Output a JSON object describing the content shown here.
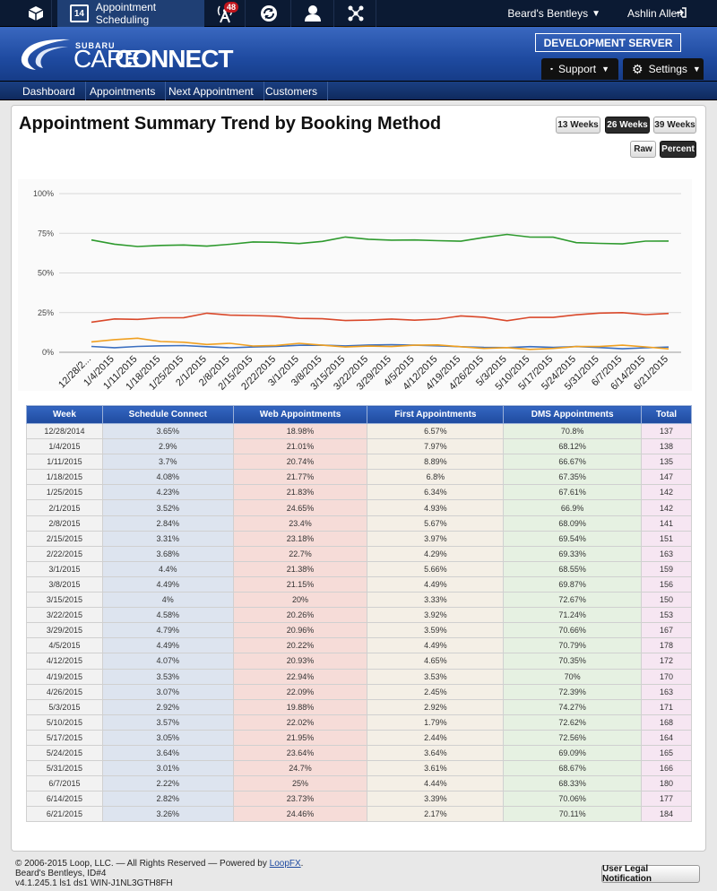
{
  "topbar": {
    "app_name": "Appointment Scheduling",
    "calendar_day": "14",
    "notification_count": "48",
    "dealer_name": "Beard's Bentleys",
    "user_name": "Ashlin Allen"
  },
  "header": {
    "logo_brand": "SUBARU",
    "logo_care": "CARE",
    "logo_connect": "CONNECT",
    "server_label": "DEVELOPMENT SERVER",
    "support_label": "Support",
    "settings_label": "Settings"
  },
  "nav": {
    "items": [
      "Dashboard",
      "Appointments",
      "Next Appointment",
      "Customers"
    ]
  },
  "page": {
    "title": "Appointment Summary Trend by Booking Method",
    "range_buttons": [
      "13 Weeks",
      "26 Weeks",
      "39 Weeks"
    ],
    "active_range": "26 Weeks",
    "mode_buttons": [
      "Raw",
      "Percent"
    ],
    "active_mode": "Percent"
  },
  "colors": {
    "schedule_connect": "#3b6fc0",
    "web": "#d9482a",
    "first": "#f0a020",
    "dms": "#2e9a2e"
  },
  "chart_data": {
    "type": "line",
    "x": [
      "12/28/2014",
      "1/4/2015",
      "1/11/2015",
      "1/18/2015",
      "1/25/2015",
      "2/1/2015",
      "2/8/2015",
      "2/15/2015",
      "2/22/2015",
      "3/1/2015",
      "3/8/2015",
      "3/15/2015",
      "3/22/2015",
      "3/29/2015",
      "4/5/2015",
      "4/12/2015",
      "4/19/2015",
      "4/26/2015",
      "5/3/2015",
      "5/10/2015",
      "5/17/2015",
      "5/24/2015",
      "5/31/2015",
      "6/7/2015",
      "6/14/2015",
      "6/21/2015"
    ],
    "x_tick_labels": [
      "12/28/2...",
      "1/4/2015",
      "1/11/2015",
      "1/18/2015",
      "1/25/2015",
      "2/1/2015",
      "2/8/2015",
      "2/15/2015",
      "2/22/2015",
      "3/1/2015",
      "3/8/2015",
      "3/15/2015",
      "3/22/2015",
      "3/29/2015",
      "4/5/2015",
      "4/12/2015",
      "4/19/2015",
      "4/26/2015",
      "5/3/2015",
      "5/10/2015",
      "5/17/2015",
      "5/24/2015",
      "5/31/2015",
      "6/7/2015",
      "6/14/2015",
      "6/21/2015"
    ],
    "y_ticks": [
      "0%",
      "25%",
      "50%",
      "75%",
      "100%"
    ],
    "ylim": [
      0,
      100
    ],
    "grid": true,
    "series": [
      {
        "values": [
          3.65,
          2.9,
          3.7,
          4.08,
          4.23,
          3.52,
          2.84,
          3.31,
          3.68,
          4.4,
          4.49,
          4,
          4.58,
          4.79,
          4.49,
          4.07,
          3.53,
          3.07,
          2.92,
          3.57,
          3.05,
          3.64,
          3.01,
          2.22,
          2.82,
          3.26
        ]
      },
      {
        "values": [
          18.98,
          21.01,
          20.74,
          21.77,
          21.83,
          24.65,
          23.4,
          23.18,
          22.7,
          21.38,
          21.15,
          20,
          20.26,
          20.96,
          20.22,
          20.93,
          22.94,
          22.09,
          19.88,
          22.02,
          21.95,
          23.64,
          24.7,
          25,
          23.73,
          24.46
        ]
      },
      {
        "values": [
          6.57,
          7.97,
          8.89,
          6.8,
          6.34,
          4.93,
          5.67,
          3.97,
          4.29,
          5.66,
          4.49,
          3.33,
          3.92,
          3.59,
          4.49,
          4.65,
          3.53,
          2.45,
          2.92,
          1.79,
          2.44,
          3.64,
          3.61,
          4.44,
          3.39,
          2.17
        ]
      },
      {
        "values": [
          70.8,
          68.12,
          66.67,
          67.35,
          67.61,
          66.9,
          68.09,
          69.54,
          69.33,
          68.55,
          69.87,
          72.67,
          71.24,
          70.66,
          70.79,
          70.35,
          70,
          72.39,
          74.27,
          72.62,
          72.56,
          69.09,
          68.67,
          68.33,
          70.06,
          70.11
        ]
      }
    ]
  },
  "table": {
    "headers": [
      "Week",
      "Schedule Connect",
      "Web Appointments",
      "First Appointments",
      "DMS Appointments",
      "Total"
    ],
    "rows": [
      [
        "12/28/2014",
        "3.65%",
        "18.98%",
        "6.57%",
        "70.8%",
        "137"
      ],
      [
        "1/4/2015",
        "2.9%",
        "21.01%",
        "7.97%",
        "68.12%",
        "138"
      ],
      [
        "1/11/2015",
        "3.7%",
        "20.74%",
        "8.89%",
        "66.67%",
        "135"
      ],
      [
        "1/18/2015",
        "4.08%",
        "21.77%",
        "6.8%",
        "67.35%",
        "147"
      ],
      [
        "1/25/2015",
        "4.23%",
        "21.83%",
        "6.34%",
        "67.61%",
        "142"
      ],
      [
        "2/1/2015",
        "3.52%",
        "24.65%",
        "4.93%",
        "66.9%",
        "142"
      ],
      [
        "2/8/2015",
        "2.84%",
        "23.4%",
        "5.67%",
        "68.09%",
        "141"
      ],
      [
        "2/15/2015",
        "3.31%",
        "23.18%",
        "3.97%",
        "69.54%",
        "151"
      ],
      [
        "2/22/2015",
        "3.68%",
        "22.7%",
        "4.29%",
        "69.33%",
        "163"
      ],
      [
        "3/1/2015",
        "4.4%",
        "21.38%",
        "5.66%",
        "68.55%",
        "159"
      ],
      [
        "3/8/2015",
        "4.49%",
        "21.15%",
        "4.49%",
        "69.87%",
        "156"
      ],
      [
        "3/15/2015",
        "4%",
        "20%",
        "3.33%",
        "72.67%",
        "150"
      ],
      [
        "3/22/2015",
        "4.58%",
        "20.26%",
        "3.92%",
        "71.24%",
        "153"
      ],
      [
        "3/29/2015",
        "4.79%",
        "20.96%",
        "3.59%",
        "70.66%",
        "167"
      ],
      [
        "4/5/2015",
        "4.49%",
        "20.22%",
        "4.49%",
        "70.79%",
        "178"
      ],
      [
        "4/12/2015",
        "4.07%",
        "20.93%",
        "4.65%",
        "70.35%",
        "172"
      ],
      [
        "4/19/2015",
        "3.53%",
        "22.94%",
        "3.53%",
        "70%",
        "170"
      ],
      [
        "4/26/2015",
        "3.07%",
        "22.09%",
        "2.45%",
        "72.39%",
        "163"
      ],
      [
        "5/3/2015",
        "2.92%",
        "19.88%",
        "2.92%",
        "74.27%",
        "171"
      ],
      [
        "5/10/2015",
        "3.57%",
        "22.02%",
        "1.79%",
        "72.62%",
        "168"
      ],
      [
        "5/17/2015",
        "3.05%",
        "21.95%",
        "2.44%",
        "72.56%",
        "164"
      ],
      [
        "5/24/2015",
        "3.64%",
        "23.64%",
        "3.64%",
        "69.09%",
        "165"
      ],
      [
        "5/31/2015",
        "3.01%",
        "24.7%",
        "3.61%",
        "68.67%",
        "166"
      ],
      [
        "6/7/2015",
        "2.22%",
        "25%",
        "4.44%",
        "68.33%",
        "180"
      ],
      [
        "6/14/2015",
        "2.82%",
        "23.73%",
        "3.39%",
        "70.06%",
        "177"
      ],
      [
        "6/21/2015",
        "3.26%",
        "24.46%",
        "2.17%",
        "70.11%",
        "184"
      ]
    ]
  },
  "footer": {
    "copyright": "© 2006-2015 Loop, LLC. — All Rights Reserved — Powered by ",
    "powered_link": "LoopFX",
    "copyright_end": ".",
    "dealer_line": "Beard's Bentleys, ID#4",
    "version_line": "v4.1.245.1 ls1 ds1 WIN-J1NL3GTH8FH",
    "legal_button": "User Legal Notification"
  }
}
